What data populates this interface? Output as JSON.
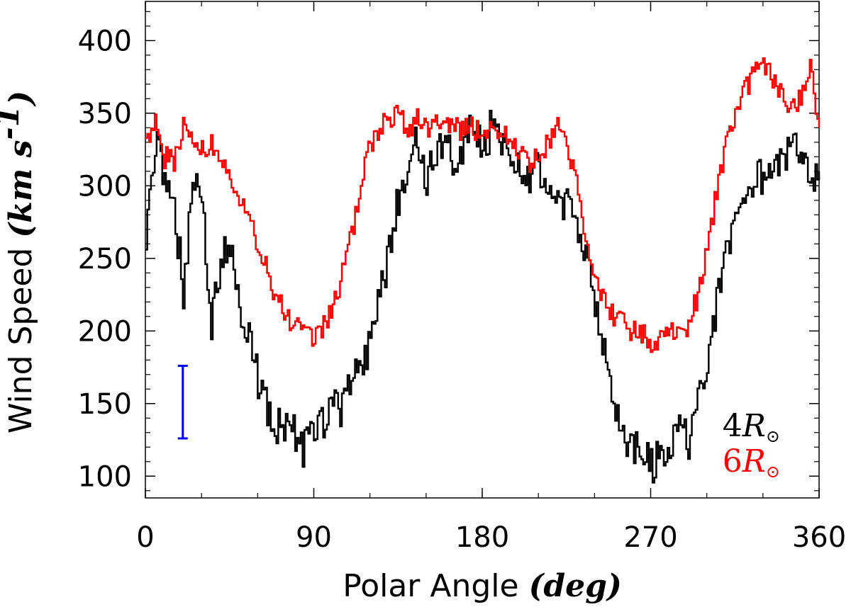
{
  "chart_data": {
    "type": "line",
    "step": true,
    "xlabel": {
      "prefix": "Polar Angle ",
      "unit": "(deg)"
    },
    "ylabel": {
      "prefix": "Wind Speed ",
      "unit": "(km s",
      "sup": "-1",
      "close": ")"
    },
    "xlim": [
      0,
      360
    ],
    "ylim": [
      85,
      427
    ],
    "xticks": [
      0,
      90,
      180,
      270,
      360
    ],
    "xtick_labels": [
      "0",
      "90",
      "180",
      "270",
      "360"
    ],
    "yticks": [
      100,
      150,
      200,
      250,
      300,
      350,
      400
    ],
    "ytick_labels": [
      "100",
      "150",
      "200",
      "250",
      "300",
      "350",
      "400"
    ],
    "series": [
      {
        "name": "4R☉",
        "color": "#000000",
        "x": [
          0,
          5,
          10,
          15,
          20,
          25,
          30,
          35,
          40,
          45,
          50,
          55,
          60,
          65,
          70,
          75,
          80,
          85,
          90,
          95,
          100,
          105,
          110,
          115,
          120,
          125,
          130,
          135,
          140,
          145,
          150,
          155,
          160,
          165,
          170,
          175,
          180,
          185,
          190,
          195,
          200,
          205,
          210,
          215,
          220,
          225,
          230,
          235,
          240,
          245,
          250,
          255,
          260,
          265,
          270,
          275,
          280,
          285,
          290,
          295,
          300,
          305,
          310,
          315,
          320,
          325,
          330,
          335,
          340,
          345,
          350,
          355,
          360
        ],
        "values": [
          270,
          330,
          300,
          290,
          225,
          300,
          290,
          205,
          250,
          265,
          220,
          200,
          165,
          145,
          135,
          132,
          130,
          118,
          130,
          140,
          150,
          145,
          165,
          175,
          195,
          220,
          260,
          290,
          315,
          330,
          300,
          325,
          335,
          310,
          330,
          340,
          320,
          345,
          335,
          320,
          310,
          300,
          315,
          300,
          290,
          285,
          270,
          250,
          215,
          185,
          145,
          128,
          120,
          115,
          108,
          112,
          120,
          135,
          125,
          150,
          175,
          220,
          255,
          270,
          290,
          300,
          310,
          305,
          320,
          330,
          315,
          300,
          310
        ]
      },
      {
        "name": "6R☉",
        "color": "#ff0000",
        "x": [
          0,
          5,
          10,
          15,
          20,
          25,
          30,
          35,
          40,
          45,
          50,
          55,
          60,
          65,
          70,
          75,
          80,
          85,
          90,
          95,
          100,
          105,
          110,
          115,
          120,
          125,
          130,
          135,
          140,
          145,
          150,
          155,
          160,
          165,
          170,
          175,
          180,
          185,
          190,
          195,
          200,
          205,
          210,
          215,
          220,
          225,
          230,
          235,
          240,
          245,
          250,
          255,
          260,
          265,
          270,
          275,
          280,
          285,
          290,
          295,
          300,
          305,
          310,
          315,
          320,
          325,
          330,
          335,
          340,
          345,
          350,
          355,
          360
        ],
        "values": [
          325,
          345,
          320,
          315,
          340,
          335,
          325,
          330,
          320,
          310,
          290,
          275,
          260,
          240,
          222,
          212,
          203,
          198,
          196,
          205,
          215,
          240,
          268,
          300,
          330,
          340,
          345,
          350,
          335,
          345,
          340,
          343,
          345,
          340,
          338,
          340,
          335,
          340,
          338,
          330,
          320,
          315,
          320,
          330,
          340,
          325,
          300,
          265,
          235,
          220,
          210,
          205,
          200,
          198,
          190,
          195,
          200,
          198,
          205,
          225,
          260,
          295,
          330,
          350,
          365,
          380,
          382,
          375,
          360,
          350,
          360,
          380,
          340
        ]
      }
    ],
    "error_bar": {
      "x": 20,
      "y_low": 126,
      "y_high": 176,
      "color": "#0000ff"
    },
    "legend": {
      "position": "bottom-right",
      "entries": [
        {
          "num": "4",
          "sym": "R",
          "sub": "⊙",
          "color": "#000000"
        },
        {
          "num": "6",
          "sym": "R",
          "sub": "⊙",
          "color": "#ff0000"
        }
      ]
    }
  }
}
